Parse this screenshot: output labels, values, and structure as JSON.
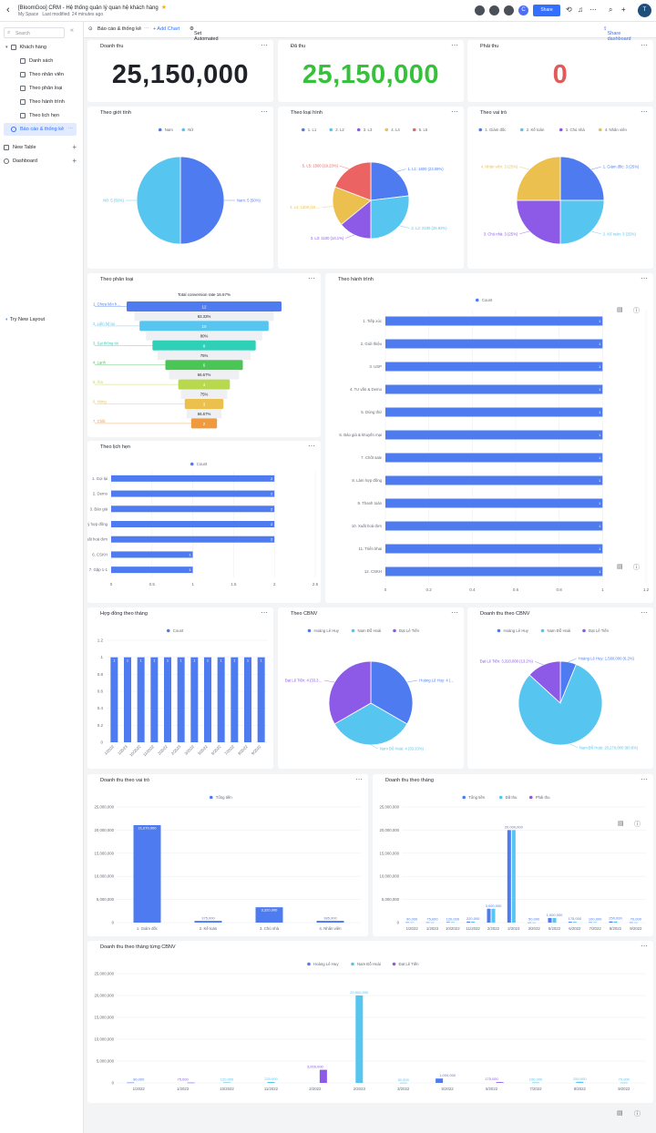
{
  "app": {
    "title": "[BloomGoo] CRM - Hệ thống quản lý quan hệ khách hàng",
    "space": "My Space",
    "modified": "Last modified: 24 minutes ago",
    "share": "Share",
    "avatar": "T",
    "avatar_c": "C"
  },
  "sidebar": {
    "search": "Search",
    "items": [
      {
        "label": "Khách hàng"
      },
      {
        "label": "Danh sách"
      },
      {
        "label": "Theo nhân viên"
      },
      {
        "label": "Theo phân loại"
      },
      {
        "label": "Theo hành trình"
      },
      {
        "label": "Theo lịch hẹn"
      },
      {
        "label": "Báo cáo & thống kê"
      },
      {
        "label": "New Table"
      },
      {
        "label": "Dashboard"
      }
    ],
    "try_layout": "Try New Layout"
  },
  "toolbar": {
    "tab": "Báo cáo & thống kê",
    "add_chart": "+ Add Chart",
    "workflow": "Set Automated Workflow",
    "share_dashboard": "Share dashboard"
  },
  "colors": {
    "blue": "#4e7cf0",
    "cyan": "#56c5ef",
    "purple": "#8d5ae8",
    "yellow": "#ebc04e",
    "red": "#eb6362",
    "green": "#36c13b",
    "zero": "#e25a5a"
  },
  "stats": [
    {
      "title": "Doanh thu",
      "value": "25,150,000"
    },
    {
      "title": "Đã thu",
      "value": "25,150,000"
    },
    {
      "title": "Phải thu",
      "value": "0"
    }
  ],
  "chart_data": [
    {
      "id": "gioitinh",
      "type": "pie",
      "title": "Theo giới tính",
      "legend": [
        "Nam",
        "Nữ"
      ],
      "values": [
        5,
        5
      ],
      "labels": [
        "Nam: 5 (50%)",
        "Nữ: 5 (50%)"
      ]
    },
    {
      "id": "loaihinh",
      "type": "pie",
      "title": "Theo loại hình",
      "legend": [
        "L1",
        "L2",
        "L3",
        "L4",
        "L5"
      ],
      "values": [
        1800,
        2100,
        1100,
        1300,
        1500
      ],
      "labels": [
        "1. L1: 1800 (23.08%)",
        "2. L2: 2100 (26.92%)",
        "3. L3: 1100 (14.1%)",
        "4. L4: 1300 (16.…",
        "5. L5: 1500 (19.23%)"
      ]
    },
    {
      "id": "vaitro",
      "type": "pie",
      "title": "Theo vai trò",
      "legend": [
        "1. Giám đốc",
        "2. Kế toán",
        "3. Chủ nhà",
        "4. Nhân viên"
      ],
      "values": [
        3,
        3,
        3,
        3
      ],
      "labels": [
        "1. Giám đốc: 3 (25%)",
        "2. Kế toán: 3 (25%)",
        "3. Chủ nhà: 3 (25%)",
        "4. Nhân viên: 3 (25%)"
      ]
    },
    {
      "id": "phanloai",
      "type": "funnel",
      "title": "Theo phân loại",
      "subtitle": "Total conversion rate 16.67%",
      "stages": [
        "1. Chưa liên h…",
        "2. Liên hệ lại",
        "3. Sai thông tin",
        "4. Lạnh",
        "5. Ấm",
        "6. Nóng",
        "7. Chốt"
      ],
      "values": [
        12,
        10,
        8,
        6,
        4,
        3,
        2
      ],
      "rates": [
        "83.33%",
        "80%",
        "75%",
        "66.67%",
        "75%",
        "66.67%"
      ]
    },
    {
      "id": "hanhtrinh",
      "type": "bar",
      "title": "Theo hành trình",
      "legend": [
        "Count"
      ],
      "categories": [
        "1. Tiếp xúc",
        "2. Giới thiệu",
        "3. USP",
        "4. Tư vấn & Demo",
        "5. Dùng thử",
        "6. Báo giá & khuyến mại",
        "7. Chốt sale",
        "8. Làm hợp đồng",
        "9. Thanh toán",
        "10. Xuất hoá đơn",
        "11. Triển khai",
        "12. CSKH"
      ],
      "values": [
        1,
        1,
        1,
        1,
        1,
        1,
        1,
        1,
        1,
        1,
        1,
        1
      ],
      "xticks": [
        "0",
        "0.2",
        "0.4",
        "0.6",
        "0.8",
        "1",
        "1.2"
      ],
      "xlim": [
        0,
        1.2
      ]
    },
    {
      "id": "lichhen",
      "type": "bar",
      "title": "Theo lịch hẹn",
      "legend": [
        "Count"
      ],
      "categories": [
        "1. Gọi lại",
        "2. Demo",
        "3. Báo giá",
        "4. Ký hợp đồng",
        "5. Xuất hoá đơn",
        "6. CSKH",
        "7. Gặp 1-1"
      ],
      "values": [
        2,
        2,
        2,
        2,
        2,
        1,
        1
      ],
      "xticks": [
        "0",
        "0.5",
        "1",
        "1.5",
        "2",
        "2.5"
      ],
      "xlim": [
        0,
        2.5
      ]
    },
    {
      "id": "hopdong",
      "type": "bar",
      "title": "Hợp đồng theo tháng",
      "legend": [
        "Count"
      ],
      "categories": [
        "1/2022",
        "1/2023",
        "10/2022",
        "11/2022",
        "2/2022",
        "2/2023",
        "3/2022",
        "5/2022",
        "6/2022",
        "7/2022",
        "8/2022",
        "9/2022"
      ],
      "values": [
        1,
        1,
        1,
        1,
        1,
        1,
        1,
        1,
        1,
        1,
        1,
        1
      ],
      "yticks": [
        "0",
        "0.2",
        "0.4",
        "0.6",
        "0.8",
        "1",
        "1.2"
      ],
      "ylim": [
        0,
        1.2
      ]
    },
    {
      "id": "cbnv",
      "type": "pie",
      "title": "Theo CBNV",
      "legend": [
        "Hoàng Lê Huy",
        "Nam Đỗ Hoài",
        "Đạt Lê Tiến"
      ],
      "values": [
        4,
        4,
        4
      ],
      "labels": [
        "Hoàng Lê Huy: 4 (…",
        "Nam Đỗ Hoài: 4 (33.33%)",
        "Đạt Lê Tiến: 4 (33.3…"
      ]
    },
    {
      "id": "dtcbnv",
      "type": "pie",
      "title": "Doanh thu theo CBNV",
      "legend": [
        "Hoàng Lê Huy",
        "Nam Đỗ Hoài",
        "Đạt Lê Tiến"
      ],
      "values": [
        1560000,
        20270000,
        3320000
      ],
      "labels": [
        "Hoàng Lê Huy: 1,560,000 (6.2%)",
        "Nam Đỗ Hoài: 20,270,000 (80.6%)",
        "Đạt Lê Tiến: 3,320,000 (13.2%)"
      ]
    },
    {
      "id": "dtvaitro",
      "type": "bar",
      "title": "Doanh thu theo vai trò",
      "legend": [
        "Tổng tiền"
      ],
      "categories": [
        "1. Giám đốc",
        "2. Kế toán",
        "3. Chủ nhà",
        "4. Nhân viên"
      ],
      "values": [
        21070000,
        375000,
        3320000,
        385000
      ],
      "value_labels": [
        "21,070,000",
        "375,000",
        "3,320,000",
        "385,000"
      ],
      "yticks": [
        "0",
        "5,000,000",
        "10,000,000",
        "15,000,000",
        "20,000,000",
        "25,000,000"
      ],
      "ylim": [
        0,
        25000000
      ]
    },
    {
      "id": "dtthang",
      "type": "bar",
      "title": "Doanh thu theo tháng",
      "legend": [
        "Tổng tiền",
        "Đã thu",
        "Phải thu"
      ],
      "categories": [
        "1/2022",
        "1/2023",
        "10/2022",
        "11/2022",
        "2/2022",
        "2/2023",
        "3/2022",
        "5/2022",
        "6/2022",
        "7/2022",
        "8/2022",
        "9/2022"
      ],
      "series": [
        {
          "name": "Tổng tiền",
          "values": [
            90000,
            75000,
            120000,
            220000,
            3000000,
            20000000,
            50000,
            1000000,
            175000,
            100000,
            250000,
            70000
          ]
        },
        {
          "name": "Đã thu",
          "values": [
            90000,
            75000,
            120000,
            220000,
            3000000,
            20000000,
            50000,
            1000000,
            175000,
            100000,
            250000,
            70000
          ]
        },
        {
          "name": "Phải thu",
          "values": [
            0,
            0,
            0,
            0,
            0,
            0,
            0,
            0,
            0,
            0,
            0,
            0
          ]
        }
      ],
      "value_labels": [
        "90,000",
        "75,000",
        "120,000",
        "220,000",
        "3,000,000",
        "20,000,000",
        "50,000",
        "1,000,000",
        "175,000",
        "100,000",
        "250,000",
        "70,000"
      ],
      "yticks": [
        "0",
        "5,000,000",
        "10,000,000",
        "15,000,000",
        "20,000,000",
        "25,000,000"
      ],
      "ylim": [
        0,
        25000000
      ]
    },
    {
      "id": "dtthangcbnv",
      "type": "bar",
      "title": "Doanh thu theo tháng từng CBNV",
      "legend": [
        "Hoàng Lê Huy",
        "Nam Đỗ Hoài",
        "Đạt Lê Tiến"
      ],
      "categories": [
        "1/2022",
        "1/2023",
        "10/2022",
        "11/2022",
        "2/2022",
        "2/2023",
        "3/2022",
        "5/2022",
        "6/2022",
        "7/2022",
        "8/2022",
        "9/2022"
      ],
      "series": [
        {
          "name": "Hoàng Lê Huy",
          "values": [
            90000,
            0,
            0,
            0,
            0,
            0,
            0,
            1000000,
            0,
            0,
            0,
            0
          ]
        },
        {
          "name": "Nam Đỗ Hoài",
          "values": [
            0,
            0,
            120000,
            220000,
            0,
            20000000,
            50000,
            0,
            0,
            100000,
            250000,
            70000
          ]
        },
        {
          "name": "Đạt Lê Tiến",
          "values": [
            0,
            75000,
            0,
            0,
            3000000,
            0,
            0,
            0,
            175000,
            0,
            0,
            0
          ]
        }
      ],
      "value_labels": [
        "90,000",
        "75,000",
        "120,000",
        "220,000",
        "3,000,000",
        "20,000,000",
        "50,000",
        "1,000,000",
        "175,000",
        "100,000",
        "250,000",
        "70,000"
      ],
      "yticks": [
        "0",
        "5,000,000",
        "10,000,000",
        "15,000,000",
        "20,000,000",
        "25,000,000"
      ],
      "ylim": [
        0,
        25000000
      ]
    }
  ]
}
